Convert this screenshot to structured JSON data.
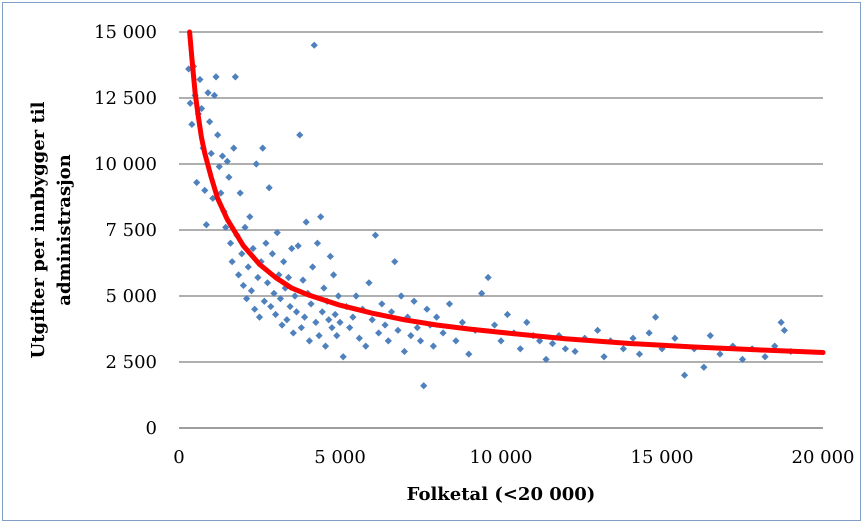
{
  "chart_data": {
    "type": "scatter",
    "xlabel": "Folketal (<20 000)",
    "ylabel_lines": [
      "Utgifter per innbygger til",
      "administrasjon"
    ],
    "xlim": [
      0,
      20000
    ],
    "ylim": [
      0,
      15000
    ],
    "x_ticks": [
      0,
      5000,
      10000,
      15000,
      20000
    ],
    "x_tick_labels": [
      "0",
      "5 000",
      "10 000",
      "15 000",
      "20 000"
    ],
    "y_ticks": [
      0,
      2500,
      5000,
      7500,
      10000,
      12500,
      15000
    ],
    "y_tick_labels": [
      "0",
      "2 500",
      "5 000",
      "7 500",
      "10 000",
      "12 500",
      "15 000"
    ],
    "grid": "horizontal",
    "colors": {
      "points": "#4f81bd",
      "trend": "#ff0000",
      "grid": "#7f7f7f",
      "frame": "#7f9fc7"
    },
    "series": [
      {
        "kind": "points",
        "points": [
          [
            300,
            13600
          ],
          [
            350,
            12300
          ],
          [
            400,
            11500
          ],
          [
            450,
            13700
          ],
          [
            500,
            12600
          ],
          [
            550,
            9300
          ],
          [
            600,
            11900
          ],
          [
            650,
            13200
          ],
          [
            700,
            12100
          ],
          [
            750,
            10600
          ],
          [
            800,
            9000
          ],
          [
            850,
            7700
          ],
          [
            900,
            12700
          ],
          [
            950,
            11600
          ],
          [
            1000,
            10400
          ],
          [
            1050,
            8700
          ],
          [
            1100,
            12600
          ],
          [
            1150,
            13300
          ],
          [
            1200,
            11100
          ],
          [
            1250,
            9900
          ],
          [
            1300,
            8900
          ],
          [
            1350,
            10300
          ],
          [
            1400,
            8200
          ],
          [
            1450,
            7600
          ],
          [
            1500,
            10100
          ],
          [
            1550,
            9500
          ],
          [
            1600,
            7000
          ],
          [
            1650,
            6300
          ],
          [
            1700,
            10600
          ],
          [
            1750,
            13300
          ],
          [
            1800,
            7300
          ],
          [
            1850,
            5800
          ],
          [
            1900,
            8900
          ],
          [
            1950,
            6600
          ],
          [
            2000,
            5400
          ],
          [
            2050,
            7600
          ],
          [
            2100,
            4900
          ],
          [
            2150,
            6100
          ],
          [
            2200,
            8000
          ],
          [
            2250,
            5200
          ],
          [
            2300,
            6800
          ],
          [
            2350,
            4500
          ],
          [
            2400,
            10000
          ],
          [
            2450,
            5700
          ],
          [
            2500,
            4200
          ],
          [
            2550,
            6300
          ],
          [
            2600,
            10600
          ],
          [
            2650,
            4800
          ],
          [
            2700,
            7000
          ],
          [
            2750,
            5500
          ],
          [
            2800,
            9100
          ],
          [
            2850,
            4600
          ],
          [
            2900,
            6600
          ],
          [
            2950,
            5100
          ],
          [
            3000,
            4300
          ],
          [
            3050,
            7400
          ],
          [
            3100,
            5800
          ],
          [
            3150,
            4900
          ],
          [
            3200,
            3900
          ],
          [
            3250,
            6300
          ],
          [
            3300,
            5300
          ],
          [
            3350,
            4100
          ],
          [
            3400,
            5700
          ],
          [
            3450,
            4600
          ],
          [
            3500,
            6800
          ],
          [
            3550,
            3600
          ],
          [
            3600,
            5000
          ],
          [
            3650,
            4400
          ],
          [
            3700,
            6900
          ],
          [
            3750,
            11100
          ],
          [
            3800,
            3800
          ],
          [
            3850,
            5600
          ],
          [
            3900,
            4200
          ],
          [
            3950,
            7800
          ],
          [
            4000,
            5100
          ],
          [
            4050,
            3300
          ],
          [
            4100,
            4700
          ],
          [
            4150,
            6100
          ],
          [
            4200,
            14500
          ],
          [
            4250,
            4000
          ],
          [
            4300,
            7000
          ],
          [
            4350,
            3500
          ],
          [
            4400,
            8000
          ],
          [
            4450,
            4400
          ],
          [
            4500,
            5300
          ],
          [
            4550,
            3100
          ],
          [
            4600,
            4800
          ],
          [
            4650,
            4100
          ],
          [
            4700,
            6500
          ],
          [
            4750,
            3800
          ],
          [
            4800,
            5800
          ],
          [
            4850,
            4300
          ],
          [
            4900,
            3500
          ],
          [
            4950,
            5000
          ],
          [
            5000,
            4000
          ],
          [
            5100,
            2700
          ],
          [
            5200,
            4600
          ],
          [
            5300,
            3800
          ],
          [
            5400,
            4200
          ],
          [
            5500,
            5000
          ],
          [
            5600,
            3400
          ],
          [
            5700,
            4500
          ],
          [
            5800,
            3100
          ],
          [
            5900,
            5500
          ],
          [
            6000,
            4100
          ],
          [
            6100,
            7300
          ],
          [
            6200,
            3600
          ],
          [
            6300,
            4700
          ],
          [
            6400,
            3900
          ],
          [
            6500,
            3300
          ],
          [
            6600,
            4400
          ],
          [
            6700,
            6300
          ],
          [
            6800,
            3700
          ],
          [
            6900,
            5000
          ],
          [
            7000,
            2900
          ],
          [
            7100,
            4200
          ],
          [
            7200,
            3500
          ],
          [
            7300,
            4800
          ],
          [
            7400,
            3800
          ],
          [
            7500,
            3300
          ],
          [
            7600,
            1600
          ],
          [
            7700,
            4500
          ],
          [
            7800,
            3900
          ],
          [
            7900,
            3100
          ],
          [
            8000,
            4200
          ],
          [
            8200,
            3600
          ],
          [
            8400,
            4700
          ],
          [
            8600,
            3300
          ],
          [
            8800,
            4000
          ],
          [
            9000,
            2800
          ],
          [
            9200,
            3700
          ],
          [
            9400,
            5100
          ],
          [
            9600,
            5700
          ],
          [
            9800,
            3900
          ],
          [
            10000,
            3300
          ],
          [
            10200,
            4300
          ],
          [
            10400,
            3600
          ],
          [
            10600,
            3000
          ],
          [
            10800,
            4000
          ],
          [
            11000,
            3500
          ],
          [
            11200,
            3300
          ],
          [
            11400,
            2600
          ],
          [
            11600,
            3200
          ],
          [
            11800,
            3500
          ],
          [
            12000,
            3000
          ],
          [
            12300,
            2900
          ],
          [
            12600,
            3400
          ],
          [
            13000,
            3700
          ],
          [
            13200,
            2700
          ],
          [
            13400,
            3300
          ],
          [
            13800,
            3000
          ],
          [
            14100,
            3400
          ],
          [
            14300,
            2800
          ],
          [
            14600,
            3600
          ],
          [
            14800,
            4200
          ],
          [
            15000,
            3000
          ],
          [
            15400,
            3400
          ],
          [
            15700,
            2000
          ],
          [
            16000,
            3000
          ],
          [
            16300,
            2300
          ],
          [
            16500,
            3500
          ],
          [
            16800,
            2800
          ],
          [
            17200,
            3100
          ],
          [
            17500,
            2600
          ],
          [
            17800,
            3000
          ],
          [
            18200,
            2700
          ],
          [
            18500,
            3100
          ],
          [
            18700,
            4000
          ],
          [
            18800,
            3700
          ],
          [
            19000,
            2900
          ]
        ]
      },
      {
        "kind": "trend",
        "curve": [
          [
            330,
            15000
          ],
          [
            400,
            14000
          ],
          [
            500,
            12700
          ],
          [
            600,
            11800
          ],
          [
            700,
            11000
          ],
          [
            800,
            10400
          ],
          [
            1000,
            9500
          ],
          [
            1200,
            8700
          ],
          [
            1500,
            7900
          ],
          [
            2000,
            6900
          ],
          [
            2500,
            6200
          ],
          [
            3000,
            5700
          ],
          [
            3500,
            5300
          ],
          [
            4000,
            5050
          ],
          [
            5000,
            4650
          ],
          [
            6000,
            4350
          ],
          [
            7000,
            4100
          ],
          [
            8000,
            3900
          ],
          [
            9000,
            3750
          ],
          [
            10000,
            3620
          ],
          [
            12000,
            3380
          ],
          [
            14000,
            3200
          ],
          [
            16000,
            3070
          ],
          [
            18000,
            2960
          ],
          [
            20000,
            2860
          ]
        ]
      }
    ]
  }
}
